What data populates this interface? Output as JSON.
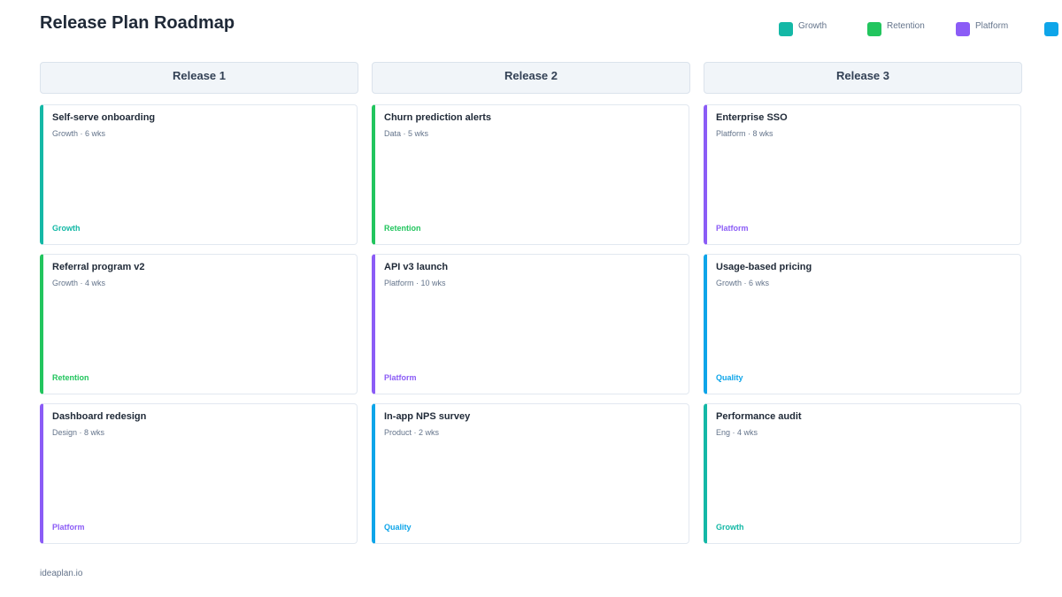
{
  "header": {
    "title": "Release Plan Roadmap"
  },
  "legend": [
    {
      "name": "Growth",
      "color": "#14b8a6"
    },
    {
      "name": "Retention",
      "color": "#22c55e"
    },
    {
      "name": "Platform",
      "color": "#8b5cf6"
    }
  ],
  "columns": [
    {
      "title": "Release 1",
      "cards": [
        {
          "title": "Self-serve onboarding",
          "meta": "Growth · 6 wks",
          "tag": "Growth",
          "color": "#14b8a6"
        },
        {
          "title": "Referral program v2",
          "meta": "Growth · 4 wks",
          "tag": "Retention",
          "color": "#22c55e"
        },
        {
          "title": "Dashboard redesign",
          "meta": "Design · 8 wks",
          "tag": "Platform",
          "color": "#8b5cf6"
        }
      ]
    },
    {
      "title": "Release 2",
      "cards": [
        {
          "title": "Churn prediction alerts",
          "meta": "Data · 5 wks",
          "tag": "Retention",
          "color": "#22c55e"
        },
        {
          "title": "API v3 launch",
          "meta": "Platform · 10 wks",
          "tag": "Platform",
          "color": "#8b5cf6"
        },
        {
          "title": "In-app NPS survey",
          "meta": "Product · 2 wks",
          "tag": "Quality",
          "color": "#0ea5e9"
        }
      ]
    },
    {
      "title": "Release 3",
      "cards": [
        {
          "title": "Enterprise SSO",
          "meta": "Platform · 8 wks",
          "tag": "Platform",
          "color": "#8b5cf6"
        },
        {
          "title": "Usage-based pricing",
          "meta": "Growth · 6 wks",
          "tag": "Quality",
          "color": "#0ea5e9"
        },
        {
          "title": "Performance audit",
          "meta": "Eng · 4 wks",
          "tag": "Growth",
          "color": "#14b8a6"
        }
      ]
    }
  ],
  "footer": {
    "text": "ideaplan.io"
  }
}
